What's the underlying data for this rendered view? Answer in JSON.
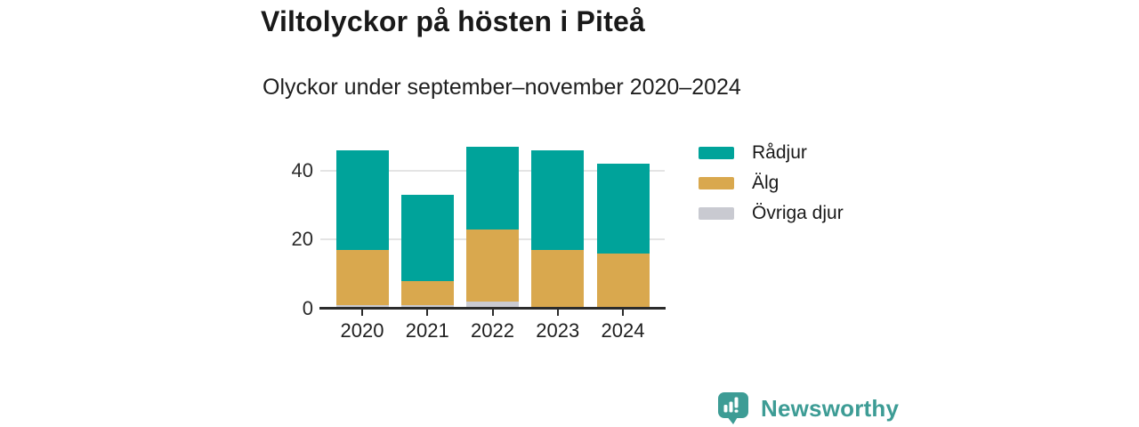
{
  "chart_data": {
    "type": "bar",
    "stacked": true,
    "title": "Viltolyckor på hösten i Piteå",
    "subtitle": "Olyckor under september–november 2020–2024",
    "categories": [
      "2020",
      "2021",
      "2022",
      "2023",
      "2024"
    ],
    "series": [
      {
        "name": "Rådjur",
        "color": "#00a39a",
        "values": [
          29,
          25,
          24,
          29,
          26
        ]
      },
      {
        "name": "Älg",
        "color": "#d9a84e",
        "values": [
          16,
          7,
          21,
          17,
          16
        ]
      },
      {
        "name": "Övriga djur",
        "color": "#c9cad1",
        "values": [
          1,
          1,
          2,
          0,
          0
        ]
      }
    ],
    "stack_order": "legend order top-to-bottom (Rådjur on top, Övriga djur at bottom)",
    "totals": [
      46,
      33,
      47,
      46,
      42
    ],
    "xlabel": "",
    "ylabel": "",
    "yticks": [
      0,
      20,
      40
    ],
    "ylim": [
      0,
      50
    ],
    "grid": "horizontal",
    "legend_position": "right",
    "axis_color": "#2b2b2b",
    "gridline_color": "#e4e4e4"
  },
  "footer": {
    "brand": "Newsworthy",
    "brand_color": "#3d9c95",
    "logo_icon": "bar-chart-speech-bubble-icon"
  }
}
